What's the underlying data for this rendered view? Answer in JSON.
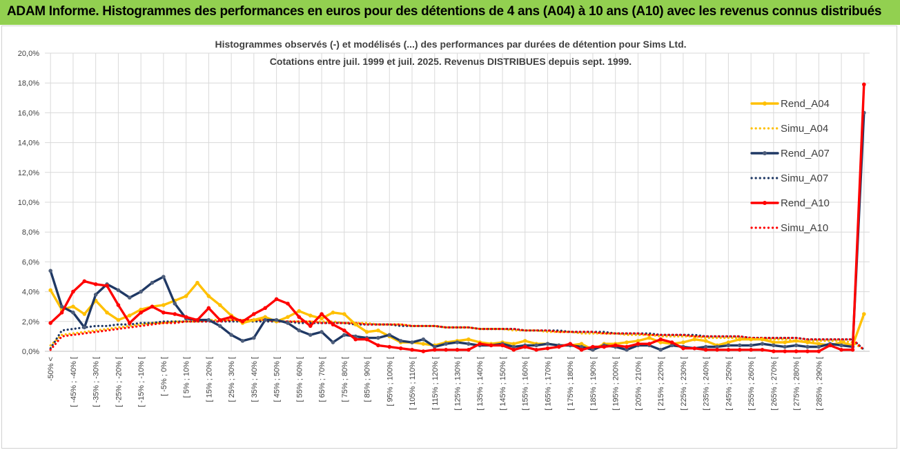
{
  "header": {
    "title": "ADAM Informe. Histogrammes des performances en euros pour des détentions de 4 ans (A04) à 10 ans (A10) avec les revenus connus distribués"
  },
  "chart_data": {
    "type": "line",
    "title_line1": "Histogrammes observés (-) et modélisés (...) des performances par durées de détention pour Sims Ltd.",
    "title_line2": "Cotations entre juil. 1999 et juil. 2025. Revenus DISTRIBUES depuis sept. 1999.",
    "xlabel": "",
    "ylabel": "",
    "ylim": [
      0,
      20
    ],
    "yticks": [
      "0,0%",
      "2,0%",
      "4,0%",
      "6,0%",
      "8,0%",
      "10,0%",
      "12,0%",
      "14,0%",
      "16,0%",
      "18,0%",
      "20,0%"
    ],
    "x_labels_shown": [
      "-50% <",
      "[ -45% ; -40% [",
      "[ -35% ; -30% [",
      "[ -25% ; -20% [",
      "[ -15% ; -10% [",
      "[ -5% ; 0% [",
      "[ 5% ; 10% [",
      "[ 15% ; 20% [",
      "[ 25% ; 30% [",
      "[ 35% ; 40% [",
      "[ 45% ; 50% [",
      "[ 55% ; 60% [",
      "[ 65% ; 70% [",
      "[ 75% ; 80% [",
      "[ 85% ; 90% [",
      "[ 95% ; 100% [",
      "[ 105% ; 110% [",
      "[ 115% ; 120% [",
      "[ 125% ; 130% [",
      "[ 135% ; 140% [",
      "[ 145% ; 150% [",
      "[ 155% ; 160% [",
      "[ 165% ; 170% [",
      "[ 175% ; 180% [",
      "[ 185% ; 190% [",
      "[ 195% ; 200% [",
      "[ 205% ; 210% [",
      "[ 215% ; 220% [",
      "[ 225% ; 230% [",
      "[ 235% ; 240% [",
      "[ 245% ; 250% [",
      "[ 255% ; 260% [",
      "[ 265% ; 270% [",
      "[ 275% ; 280% [",
      "[ 285% ; 290% ["
    ],
    "grid": true,
    "legend_position": "top-right",
    "series": [
      {
        "name": "Rend_A04",
        "color": "#ffc000",
        "style": "solid",
        "values": [
          4.1,
          2.8,
          3.0,
          2.5,
          3.4,
          2.6,
          2.1,
          2.4,
          2.8,
          3.0,
          3.1,
          3.4,
          3.7,
          4.6,
          3.7,
          3.1,
          2.4,
          1.9,
          2.1,
          2.3,
          2.0,
          2.3,
          2.7,
          2.4,
          2.2,
          2.6,
          2.5,
          1.8,
          1.3,
          1.4,
          1.0,
          0.6,
          0.6,
          0.5,
          0.4,
          0.6,
          0.7,
          0.8,
          0.6,
          0.5,
          0.6,
          0.5,
          0.7,
          0.5,
          0.5,
          0.4,
          0.4,
          0.5,
          0.1,
          0.5,
          0.5,
          0.6,
          0.7,
          0.9,
          0.6,
          0.5,
          0.6,
          0.8,
          0.7,
          0.4,
          0.6,
          0.8,
          0.8,
          0.8,
          0.6,
          0.6,
          0.7,
          0.6,
          0.5,
          0.4,
          0.6,
          0.4,
          2.5
        ]
      },
      {
        "name": "Simu_A04",
        "color": "#ffc000",
        "style": "dotted",
        "values": [
          0.4,
          1.1,
          1.2,
          1.3,
          1.4,
          1.5,
          1.6,
          1.7,
          1.8,
          1.9,
          1.9,
          2.0,
          2.0,
          2.0,
          2.1,
          2.1,
          2.1,
          2.1,
          2.1,
          2.1,
          2.0,
          2.0,
          2.0,
          2.0,
          2.0,
          2.0,
          1.9,
          1.9,
          1.9,
          1.8,
          1.8,
          1.8,
          1.7,
          1.7,
          1.7,
          1.6,
          1.6,
          1.6,
          1.5,
          1.5,
          1.5,
          1.4,
          1.4,
          1.4,
          1.3,
          1.3,
          1.3,
          1.2,
          1.2,
          1.2,
          1.2,
          1.1,
          1.1,
          1.1,
          1.0,
          1.0,
          1.0,
          1.0,
          0.9,
          0.9,
          0.9,
          0.9,
          0.8,
          0.8,
          0.8,
          0.8,
          0.7,
          0.7,
          0.7,
          0.7,
          0.7,
          0.6,
          0.1
        ]
      },
      {
        "name": "Rend_A07",
        "color": "#1f3864",
        "style": "solid",
        "values": [
          5.4,
          3.0,
          2.6,
          1.6,
          3.8,
          4.5,
          4.1,
          3.6,
          4.0,
          4.6,
          5.0,
          3.2,
          2.2,
          2.1,
          2.1,
          1.7,
          1.1,
          0.7,
          0.9,
          2.1,
          2.1,
          1.9,
          1.4,
          1.1,
          1.3,
          0.6,
          1.1,
          1.0,
          0.9,
          0.9,
          1.1,
          0.7,
          0.6,
          0.8,
          0.3,
          0.5,
          0.6,
          0.5,
          0.4,
          0.4,
          0.5,
          0.3,
          0.4,
          0.4,
          0.5,
          0.4,
          0.4,
          0.3,
          0.1,
          0.4,
          0.3,
          0.1,
          0.4,
          0.4,
          0.1,
          0.4,
          0.3,
          0.2,
          0.3,
          0.3,
          0.4,
          0.4,
          0.4,
          0.5,
          0.4,
          0.3,
          0.4,
          0.3,
          0.3,
          0.5,
          0.4,
          0.3,
          16.0
        ]
      },
      {
        "name": "Simu_A07",
        "color": "#1f3864",
        "style": "dotted",
        "values": [
          0.2,
          1.4,
          1.5,
          1.6,
          1.7,
          1.7,
          1.8,
          1.8,
          1.9,
          1.9,
          2.0,
          2.0,
          2.0,
          2.0,
          2.0,
          2.0,
          2.0,
          2.0,
          2.0,
          2.0,
          2.0,
          2.0,
          1.9,
          1.9,
          1.9,
          1.9,
          1.9,
          1.8,
          1.8,
          1.8,
          1.8,
          1.7,
          1.7,
          1.7,
          1.7,
          1.6,
          1.6,
          1.6,
          1.5,
          1.5,
          1.5,
          1.5,
          1.4,
          1.4,
          1.4,
          1.4,
          1.3,
          1.3,
          1.3,
          1.3,
          1.2,
          1.2,
          1.2,
          1.2,
          1.1,
          1.1,
          1.1,
          1.1,
          1.0,
          1.0,
          1.0,
          1.0,
          0.9,
          0.9,
          0.9,
          0.9,
          0.9,
          0.8,
          0.8,
          0.8,
          0.8,
          0.8,
          0.1
        ]
      },
      {
        "name": "Rend_A10",
        "color": "#ff0000",
        "style": "solid",
        "values": [
          1.9,
          2.6,
          4.0,
          4.7,
          4.5,
          4.4,
          3.1,
          1.9,
          2.6,
          3.0,
          2.6,
          2.5,
          2.3,
          2.1,
          2.9,
          2.1,
          2.3,
          2.0,
          2.5,
          2.9,
          3.5,
          3.2,
          2.3,
          1.7,
          2.5,
          1.8,
          1.4,
          0.8,
          0.8,
          0.4,
          0.3,
          0.2,
          0.1,
          0.0,
          0.1,
          0.1,
          0.1,
          0.1,
          0.5,
          0.4,
          0.4,
          0.1,
          0.3,
          0.1,
          0.2,
          0.3,
          0.5,
          0.1,
          0.3,
          0.3,
          0.4,
          0.3,
          0.5,
          0.5,
          0.8,
          0.6,
          0.2,
          0.2,
          0.1,
          0.1,
          0.1,
          0.1,
          0.1,
          0.1,
          0.0,
          0.0,
          0.0,
          0.0,
          0.0,
          0.4,
          0.1,
          0.1,
          17.9
        ]
      },
      {
        "name": "Simu_A10",
        "color": "#ff0000",
        "style": "dotted",
        "values": [
          0.1,
          1.0,
          1.1,
          1.2,
          1.3,
          1.4,
          1.5,
          1.6,
          1.7,
          1.8,
          1.9,
          1.9,
          2.0,
          2.0,
          2.0,
          2.0,
          2.1,
          2.1,
          2.1,
          2.1,
          2.0,
          2.0,
          2.0,
          2.0,
          1.9,
          1.9,
          1.9,
          1.9,
          1.8,
          1.8,
          1.8,
          1.8,
          1.7,
          1.7,
          1.7,
          1.6,
          1.6,
          1.6,
          1.5,
          1.5,
          1.5,
          1.5,
          1.4,
          1.4,
          1.4,
          1.3,
          1.3,
          1.3,
          1.3,
          1.2,
          1.2,
          1.2,
          1.2,
          1.1,
          1.1,
          1.1,
          1.1,
          1.0,
          1.0,
          1.0,
          1.0,
          1.0,
          0.9,
          0.9,
          0.9,
          0.9,
          0.9,
          0.8,
          0.8,
          0.8,
          0.8,
          0.8,
          0.1
        ]
      }
    ]
  }
}
